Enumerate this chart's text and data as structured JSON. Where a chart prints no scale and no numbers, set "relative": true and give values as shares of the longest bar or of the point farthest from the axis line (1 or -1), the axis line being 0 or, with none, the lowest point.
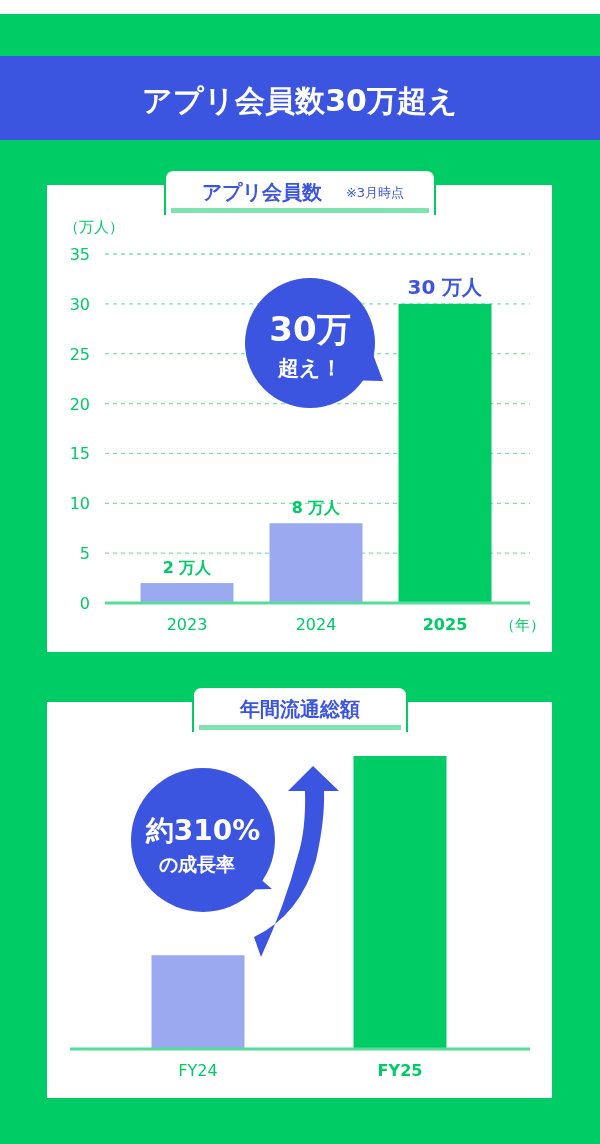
{
  "chart_data": [
    {
      "type": "bar",
      "title": "アプリ会員数30万超え",
      "subtitle": "アプリ会員数",
      "annotations": [
        "※3月時点",
        "30万",
        "超え！"
      ],
      "categories": [
        "2023",
        "2024",
        "2025"
      ],
      "values": [
        2,
        8,
        30
      ],
      "colors": [
        "#9aa9f0",
        "#9aa9f0",
        "#00cc66"
      ],
      "value_labels": [
        "2 万人",
        "8 万人",
        "30 万人"
      ],
      "ylabel": "（万人）",
      "xlabel": "（年）",
      "ylim": [
        0,
        35
      ],
      "yticks": [
        0,
        5,
        10,
        15,
        20,
        25,
        30,
        35
      ],
      "grid": "y"
    },
    {
      "type": "bar",
      "title": "年間流通総額",
      "annotations": [
        "約310%",
        "の成長率"
      ],
      "categories": [
        "FY24",
        "FY25"
      ],
      "values": [
        0.32,
        1
      ],
      "colors": [
        "#9aa9f0",
        "#00cc66"
      ],
      "relative": true
    }
  ]
}
